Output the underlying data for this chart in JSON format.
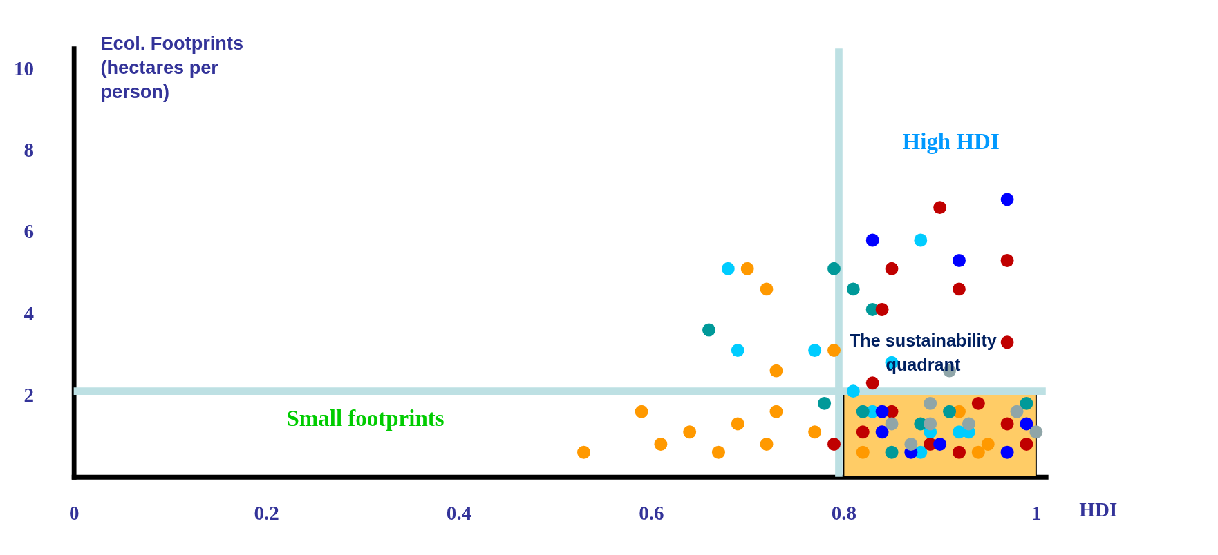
{
  "chart_data": {
    "type": "scatter",
    "xlabel": "HDI",
    "ylabel": "Ecol. Footprints (hectares per person)",
    "xlim": [
      0,
      1.01
    ],
    "ylim": [
      0,
      10.5
    ],
    "xticks": [
      0,
      0.2,
      0.4,
      0.6,
      0.8,
      1
    ],
    "yticks": [
      2,
      4,
      6,
      8,
      10
    ],
    "grid": false,
    "legend": false,
    "marker": "circle",
    "series": [
      {
        "color": "#ff9900",
        "x": [
          0.53,
          0.59,
          0.61,
          0.64,
          0.67,
          0.69,
          0.72,
          0.73,
          0.77,
          0.82,
          0.92,
          0.94,
          0.95,
          0.7,
          0.72,
          0.73,
          0.79
        ],
        "values": [
          0.6,
          1.6,
          0.8,
          1.1,
          0.6,
          1.3,
          0.8,
          1.6,
          1.1,
          0.6,
          1.6,
          0.6,
          0.8,
          5.1,
          4.6,
          2.6,
          3.1
        ]
      },
      {
        "color": "#00ccff",
        "x": [
          0.68,
          0.69,
          0.77,
          0.81,
          0.83,
          0.85,
          0.88,
          0.89,
          0.92,
          0.93,
          0.88
        ],
        "values": [
          5.1,
          3.1,
          3.1,
          2.1,
          1.6,
          2.8,
          5.8,
          1.1,
          1.1,
          1.1,
          0.6
        ]
      },
      {
        "color": "#009999",
        "x": [
          0.66,
          0.79,
          0.81,
          0.83,
          0.78,
          0.82,
          0.88,
          0.91,
          0.99,
          0.85
        ],
        "values": [
          3.6,
          5.1,
          4.6,
          4.1,
          1.8,
          1.6,
          1.3,
          1.6,
          1.8,
          0.6
        ]
      },
      {
        "color": "#c00000",
        "x": [
          0.9,
          0.97,
          0.85,
          0.92,
          0.84,
          0.97,
          0.83,
          0.79,
          0.85,
          0.94,
          0.82,
          0.89,
          0.92,
          0.97,
          0.99
        ],
        "values": [
          6.6,
          5.3,
          5.1,
          4.6,
          4.1,
          3.3,
          2.3,
          0.8,
          1.6,
          1.8,
          1.1,
          0.8,
          0.6,
          1.3,
          0.8
        ]
      },
      {
        "color": "#0000ff",
        "x": [
          0.97,
          0.83,
          0.92,
          0.84,
          0.84,
          0.9,
          0.87,
          0.97,
          0.99
        ],
        "values": [
          6.8,
          5.8,
          5.3,
          1.6,
          1.1,
          0.8,
          0.6,
          0.6,
          1.3
        ]
      },
      {
        "color": "#8fa5a8",
        "x": [
          0.91,
          0.89,
          0.85,
          0.89,
          0.87,
          0.93,
          0.98,
          1.0
        ],
        "values": [
          2.6,
          1.8,
          1.3,
          1.3,
          0.8,
          1.3,
          1.6,
          1.1
        ]
      }
    ],
    "ref_lines": [
      {
        "axis": "x",
        "value": 0.795,
        "label": "High HDI",
        "color": "#bde0e3"
      },
      {
        "axis": "y",
        "value": 2.1,
        "label": "Small footprints",
        "color": "#bde0e3"
      }
    ],
    "bands": [
      {
        "axis": "x",
        "from": 0.8,
        "to": 1.0,
        "label": "The sustainability quadrant",
        "color": "#ffcc66"
      }
    ]
  }
}
